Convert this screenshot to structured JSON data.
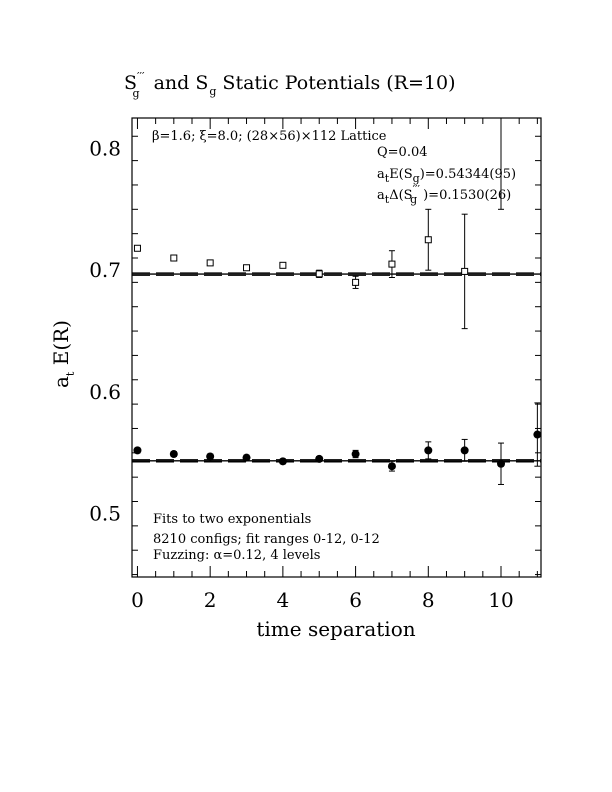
{
  "chart_data": {
    "type": "scatter",
    "title": {
      "s1": "S",
      "s1_sup": "′′′",
      "s1_sub": "g",
      "mid": "and S",
      "s2_sub": "g",
      "rest": "Static Potentials (R=10)"
    },
    "xlabel": "time separation",
    "ylabel": {
      "main": "a",
      "sub": "t",
      "rest": " E(R)"
    },
    "xlim": [
      -0.15,
      11.1
    ],
    "ylim": [
      0.448,
      0.825
    ],
    "x_ticks": [
      0,
      2,
      4,
      6,
      8,
      10
    ],
    "y_ticks": [
      0.5,
      0.6,
      0.7,
      0.8
    ],
    "x_tick_labels": [
      "0",
      "2",
      "4",
      "6",
      "8",
      "10"
    ],
    "y_tick_labels": [
      "0.5",
      "0.6",
      "0.7",
      "0.8"
    ],
    "grid": false,
    "annotations": {
      "lattice": {
        "beta": "β=1.6;",
        "xi": "ξ=8.0;",
        "dims": "(28×56)×112 Lattice"
      },
      "q": "Q=0.04",
      "energy": {
        "a": "a",
        "t": "t",
        "text": "E(S",
        "g": "g",
        "value": ")=0.54344(95)"
      },
      "delta": {
        "a": "a",
        "t": "t",
        "text": "Δ(S",
        "sup": "′′′",
        "g": "g",
        "value": ")=0.1530(26)"
      },
      "fits": "Fits to two exponentials",
      "configs": "8210 configs; fit ranges 0-12, 0-12",
      "fuzzing": "Fuzzing: α=0.12, 4 levels"
    },
    "series": [
      {
        "marker": "open-square",
        "x": [
          0,
          1,
          2,
          3,
          4,
          5,
          6,
          7,
          8,
          9
        ],
        "y": [
          0.718,
          0.71,
          0.706,
          0.702,
          0.704,
          0.697,
          0.69,
          0.705,
          0.725,
          0.699
        ],
        "err": [
          0.002,
          0.002,
          0.002,
          0.002,
          0.002,
          0.003,
          0.005,
          0.011,
          0.025,
          0.047
        ]
      },
      {
        "marker": "filled-circle",
        "x": [
          0,
          1,
          2,
          3,
          4,
          5,
          6,
          7,
          8,
          9,
          10,
          11
        ],
        "y": [
          0.552,
          0.549,
          0.547,
          0.546,
          0.543,
          0.545,
          0.549,
          0.539,
          0.552,
          0.552,
          0.541,
          0.565
        ],
        "err": [
          0.002,
          0.002,
          0.002,
          0.002,
          0.002,
          0.002,
          0.003,
          0.004,
          0.007,
          0.009,
          0.017,
          0.026
        ]
      },
      {
        "marker": "open-square-offscale",
        "x": [
          10
        ],
        "y": [
          0.85
        ],
        "err": [
          0.1
        ]
      }
    ],
    "fit_bands": [
      {
        "center": 0.6968,
        "low": 0.6958,
        "high": 0.6978,
        "x_range": [
          -0.15,
          11.1
        ]
      },
      {
        "center": 0.54344,
        "low": 0.54249,
        "high": 0.54439,
        "x_range": [
          -0.15,
          11.1
        ]
      }
    ]
  }
}
